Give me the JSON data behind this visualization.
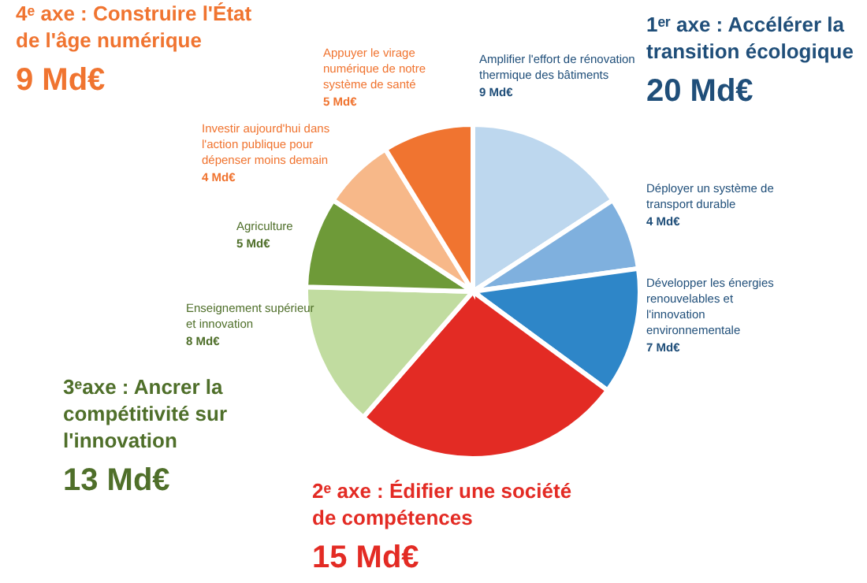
{
  "chart_data": {
    "type": "pie",
    "categories": [
      "Amplifier l'effort de rénovation thermique des bâtiments",
      "Déployer un système de transport durable",
      "Développer les énergies renouvelables et l'innovation environnementale",
      null,
      "Enseignement supérieur et innovation",
      "Agriculture",
      "Investir aujourd'hui dans l'action publique pour dépenser moins demain",
      "Appuyer le virage numérique de notre système de santé"
    ],
    "values": [
      9,
      4,
      7,
      15,
      8,
      5,
      4,
      5
    ],
    "value_labels": [
      "9 Md€",
      "4 Md€",
      "7 Md€",
      null,
      "8 Md€",
      "5 Md€",
      "4 Md€",
      "5 Md€"
    ],
    "colors": [
      "#bdd7ee",
      "#7fb0de",
      "#2e86c8",
      "#e32b24",
      "#c1dca0",
      "#6e9a38",
      "#f7b889",
      "#f07430"
    ],
    "annotations": [
      "1ᵉʳ axe : Accélérer la transition écologique",
      "20 Md€",
      "2ᵉ axe : Édifier une société de compétences",
      "15 Md€",
      "3ᵉaxe : Ancrer la compétitivité sur l'innovation",
      "13 Md€",
      "4ᵉ axe : Construire l'État de l'âge numérique",
      "9 Md€"
    ]
  }
}
